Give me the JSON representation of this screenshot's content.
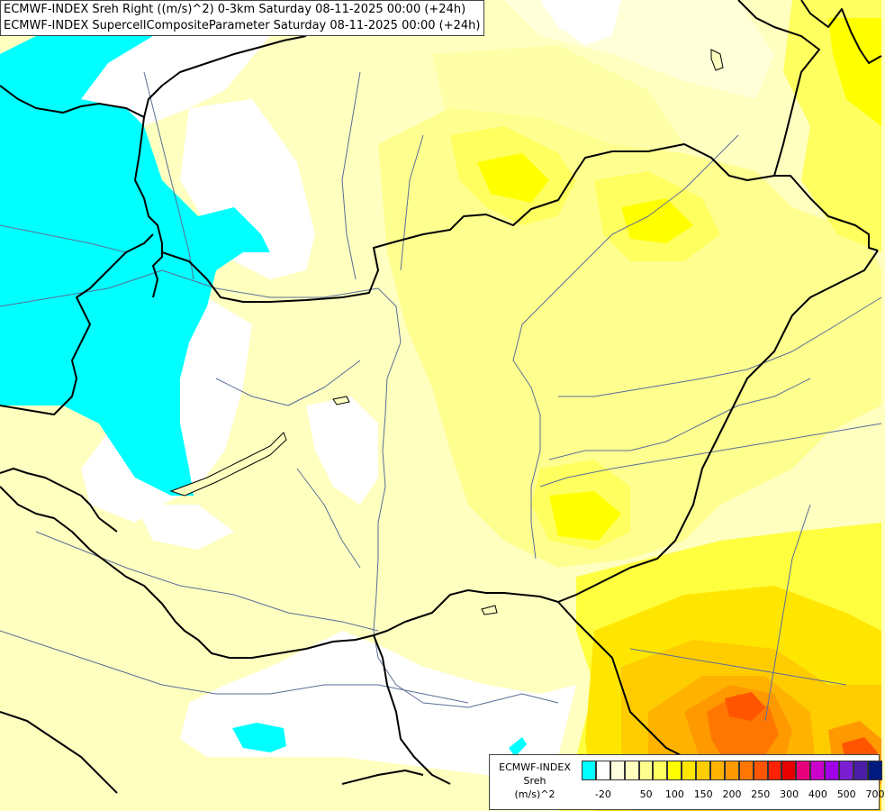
{
  "header": {
    "title_line1": "ECMWF-INDEX Sreh Right ((m/s)^2) 0-3km Saturday 08-11-2025 00:00 (+24h)",
    "title_line2": "ECMWF-INDEX SupercellCompositeParameter Saturday 08-11-2025 00:00 (+24h)"
  },
  "legend": {
    "line1": "ECMWF-INDEX",
    "line2": "Sreh",
    "line3": "(m/s)^2",
    "swatch_colors": [
      "#00ffff",
      "#ffffff",
      "#ffffe0",
      "#ffffc0",
      "#ffff90",
      "#ffff60",
      "#ffff00",
      "#ffe600",
      "#ffcc00",
      "#ffb300",
      "#ff9900",
      "#ff7700",
      "#ff5500",
      "#ff2200",
      "#e60000",
      "#e6007a",
      "#cc00cc",
      "#a000e6",
      "#7a1ed2",
      "#4b1ea8",
      "#001a80"
    ],
    "tick_labels": [
      "-20",
      "50",
      "100",
      "150",
      "200",
      "250",
      "300",
      "400",
      "500",
      "700"
    ]
  },
  "colors": {
    "background": "#ffffc0",
    "border_color": "#000000",
    "river_color": "#5a6e96"
  }
}
